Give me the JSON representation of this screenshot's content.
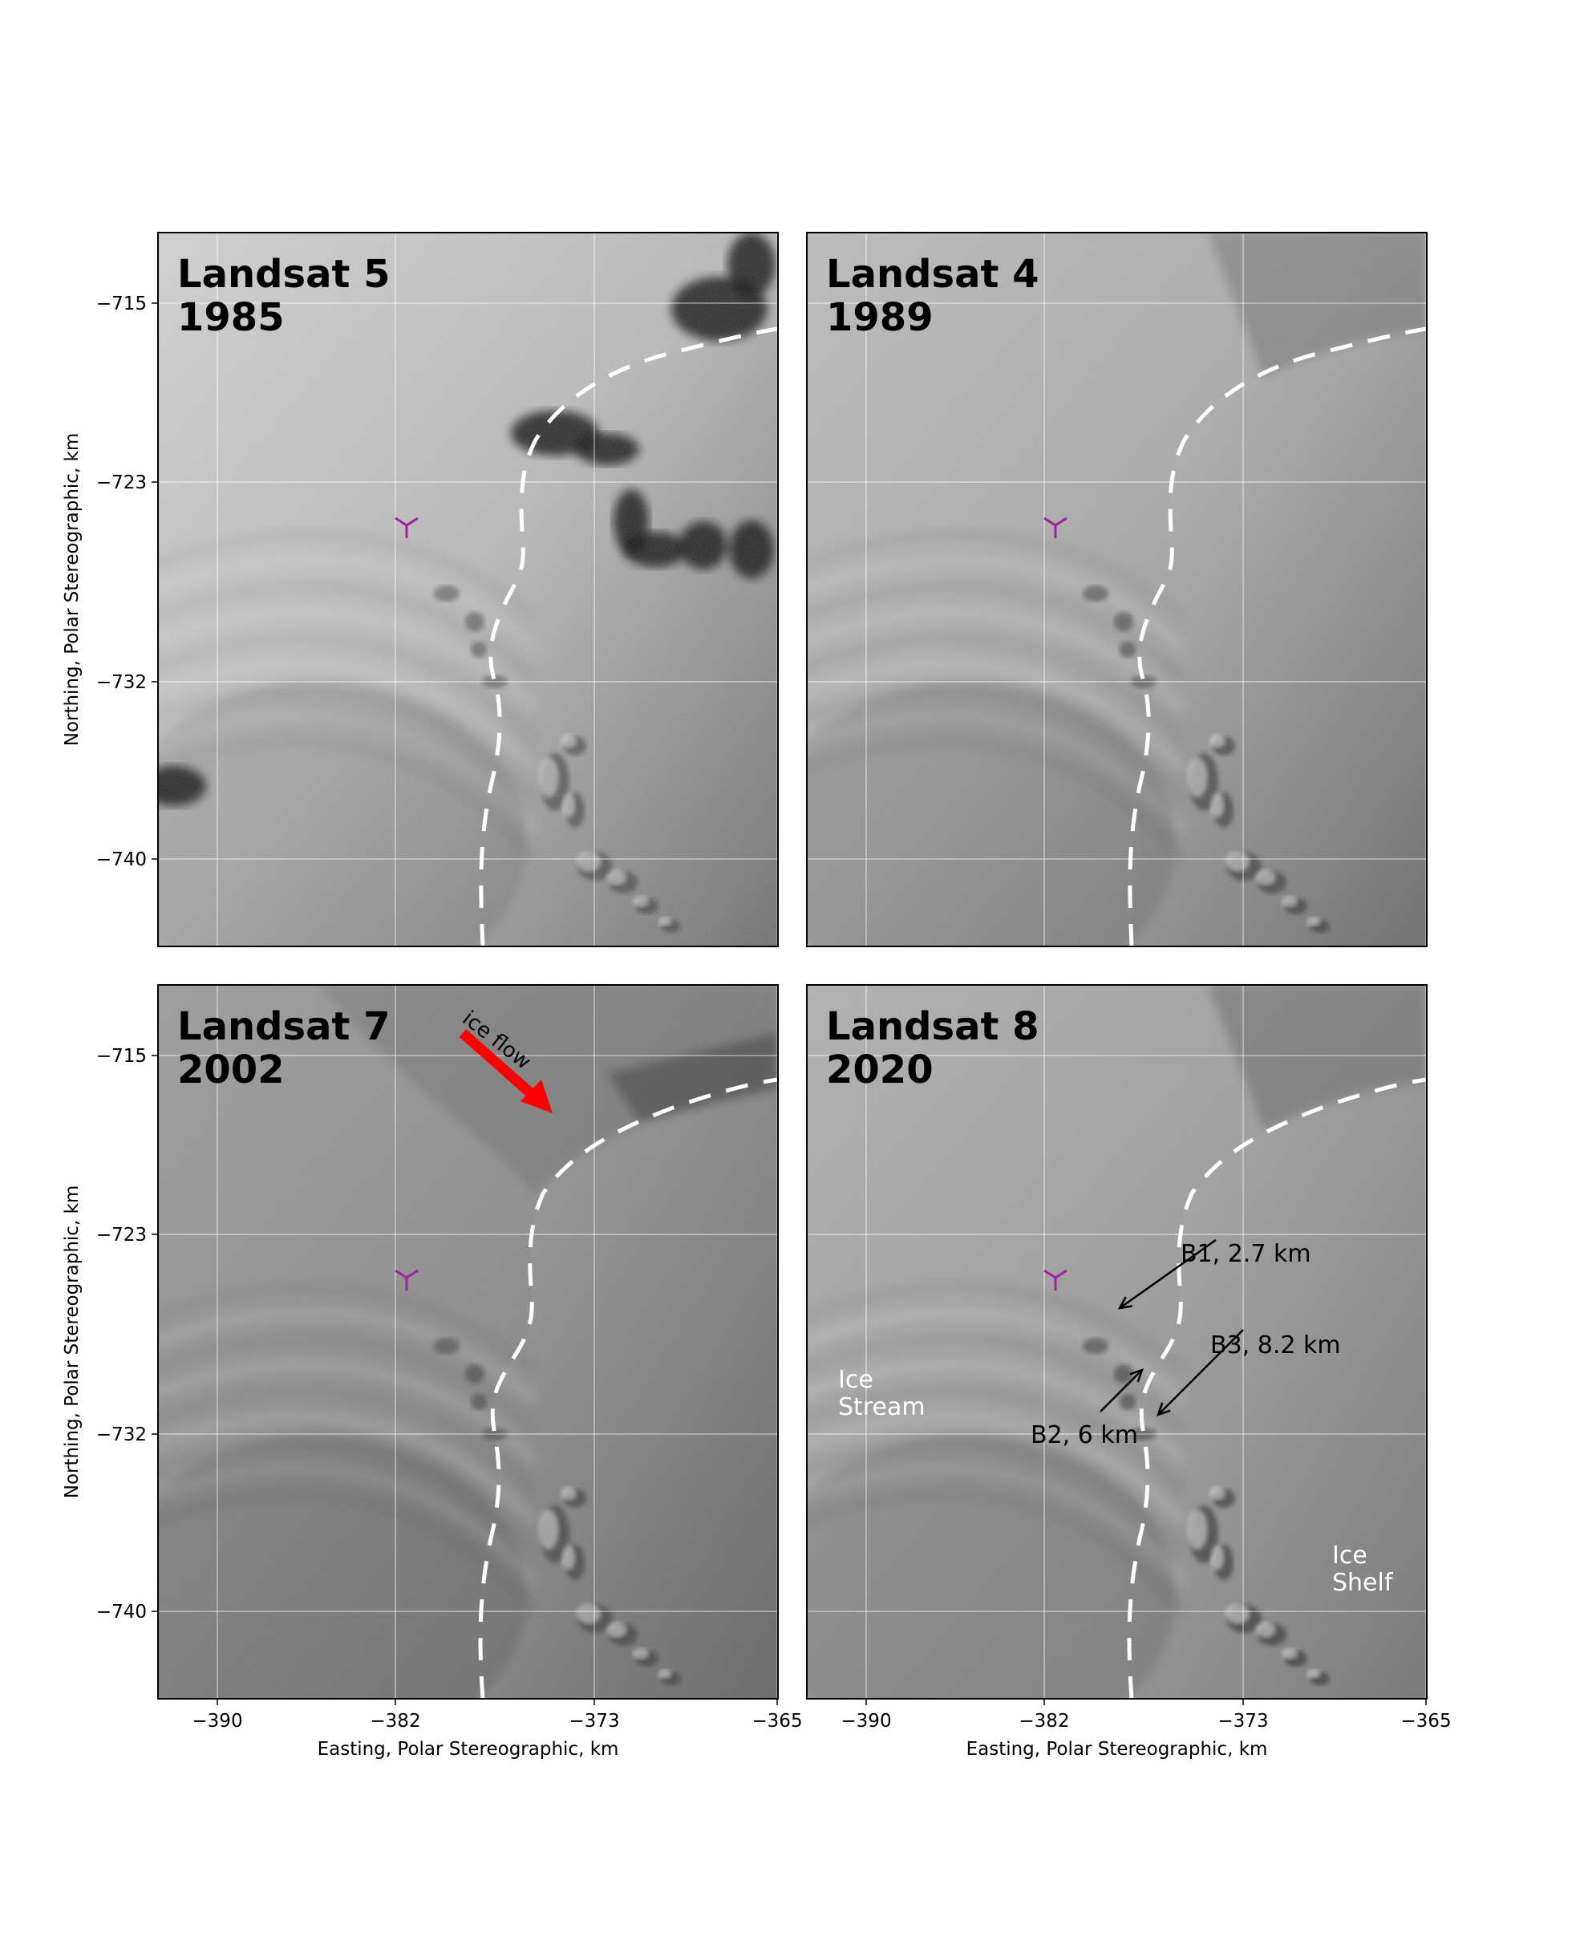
{
  "axes": {
    "x_ticks": [
      "−390",
      "−382",
      "−373",
      "−365"
    ],
    "y_ticks": [
      "−715",
      "−723",
      "−732",
      "−740"
    ],
    "xlabel": "Easting, Polar Stereographic, km",
    "ylabel": "Northing, Polar Stereographic, km"
  },
  "panels": [
    {
      "sensor": "Landsat 5",
      "year": "1985"
    },
    {
      "sensor": "Landsat 4",
      "year": "1989"
    },
    {
      "sensor": "Landsat 7",
      "year": "2002"
    },
    {
      "sensor": "Landsat 8",
      "year": "2020"
    }
  ],
  "annotations": {
    "ice_flow": "ice flow",
    "b1": "B1, 2.7 km",
    "b2": "B2, 6 km",
    "b3": "B3, 8.2 km",
    "ice_stream": [
      "Ice",
      "Stream"
    ],
    "ice_shelf": [
      "Ice",
      "Shelf"
    ]
  },
  "colors": {
    "grounding_line": "#ffffff",
    "flow_arrow": "#ff0000",
    "marker": "#a020a0"
  },
  "icons": {
    "marker": "tri-down-marker-icon",
    "flow_arrow": "arrow-icon"
  }
}
